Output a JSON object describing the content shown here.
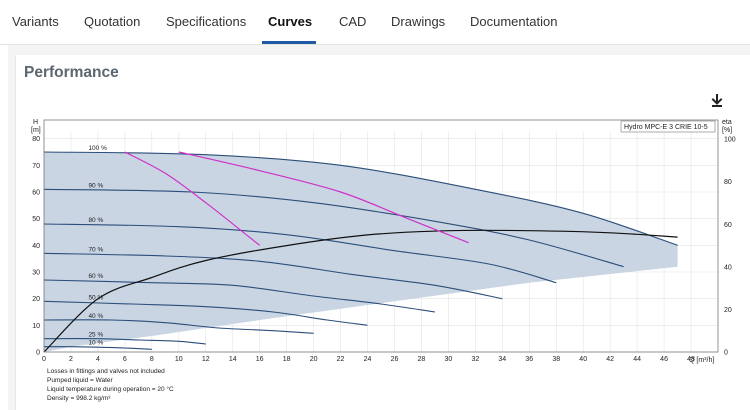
{
  "tabs": [
    {
      "label": "Variants",
      "active": false
    },
    {
      "label": "Quotation",
      "active": false
    },
    {
      "label": "Specifications",
      "active": false
    },
    {
      "label": "Curves",
      "active": true
    },
    {
      "label": "CAD",
      "active": false
    },
    {
      "label": "Drawings",
      "active": false
    },
    {
      "label": "Documentation",
      "active": false
    }
  ],
  "section": {
    "title": "Performance",
    "download_icon": "download-icon"
  },
  "colors": {
    "accent": "#1f5aa6",
    "area": "#c9d5e3",
    "curve_dark": "#2b4e7a",
    "efficiency": "#d030c8"
  },
  "chart_data": {
    "type": "line",
    "title": "Hydro MPC-E 3 CRIE 10-5",
    "y_left_label": "H",
    "y_left_unit": "[m]",
    "y_right_label": "eta",
    "y_right_unit": "[%]",
    "x_label": "Q [m³/h]",
    "x_ticks": [
      "0",
      "2",
      "4",
      "6",
      "8",
      "10",
      "12",
      "14",
      "16",
      "18",
      "20",
      "22",
      "24",
      "26",
      "28",
      "30",
      "32",
      "34",
      "36",
      "38",
      "40",
      "42",
      "44",
      "46",
      "48"
    ],
    "y_left_ticks": [
      "0",
      "10",
      "20",
      "30",
      "40",
      "50",
      "60",
      "70",
      "80"
    ],
    "y_right_ticks": [
      "0",
      "20",
      "40",
      "60",
      "80",
      "100"
    ],
    "xlim": [
      0,
      50
    ],
    "ylim": [
      0,
      87
    ],
    "y_right_lim": [
      0,
      109
    ],
    "speed_labels": [
      "100 %",
      "90 %",
      "80 %",
      "70 %",
      "60 %",
      "50 %",
      "40 %",
      "25 %",
      "10 %"
    ],
    "grid": true,
    "series": [
      {
        "name": "100 %",
        "x": [
          0,
          12,
          22,
          32,
          40,
          47
        ],
        "y": [
          75,
          74,
          70,
          61,
          52,
          40
        ]
      },
      {
        "name": "90 %",
        "x": [
          0,
          11,
          20,
          29,
          36,
          43
        ],
        "y": [
          61,
          60,
          56,
          49,
          42,
          32
        ]
      },
      {
        "name": "80 %",
        "x": [
          0,
          10,
          18,
          26,
          33,
          38
        ],
        "y": [
          48,
          47,
          44,
          38,
          33,
          26
        ]
      },
      {
        "name": "70 %",
        "x": [
          0,
          9,
          16,
          23,
          29,
          34
        ],
        "y": [
          37,
          36,
          34,
          29,
          25,
          20
        ]
      },
      {
        "name": "60 %",
        "x": [
          0,
          8,
          14,
          20,
          25,
          29
        ],
        "y": [
          27,
          26,
          25,
          21,
          18,
          15
        ]
      },
      {
        "name": "50 %",
        "x": [
          0,
          6.5,
          12,
          17,
          21,
          24
        ],
        "y": [
          19,
          18,
          17,
          15,
          12,
          10
        ]
      },
      {
        "name": "40 %",
        "x": [
          0,
          5,
          9,
          13,
          17,
          20
        ],
        "y": [
          12,
          12,
          11,
          9,
          8,
          7
        ]
      },
      {
        "name": "25 %",
        "x": [
          0,
          4,
          7,
          10,
          12
        ],
        "y": [
          5,
          5,
          4.5,
          4,
          3
        ]
      },
      {
        "name": "10 %",
        "x": [
          0,
          2,
          4,
          6,
          8
        ],
        "y": [
          2,
          2,
          1.8,
          1.5,
          1
        ]
      }
    ],
    "efficiency_curves": [
      {
        "x": [
          6,
          9,
          12,
          14.5,
          16
        ],
        "y": [
          75,
          67,
          56,
          46,
          40
        ]
      },
      {
        "x": [
          10,
          16,
          22,
          27,
          31.5
        ],
        "y": [
          75,
          68,
          60,
          50,
          41
        ]
      }
    ],
    "eta_curve": {
      "x": [
        0,
        4,
        8,
        12,
        18,
        24,
        30,
        36,
        42,
        47
      ],
      "y": [
        0,
        25,
        35,
        43,
        50,
        55,
        57,
        57,
        56,
        54
      ]
    },
    "envelope": {
      "upper_x": [
        0,
        12,
        22,
        32,
        40,
        47
      ],
      "upper_y": [
        75,
        74,
        70,
        61,
        52,
        40
      ],
      "lower_x": [
        47,
        36,
        26,
        16,
        8,
        2,
        0
      ],
      "lower_y": [
        32,
        26,
        19,
        12,
        6,
        2,
        0
      ]
    },
    "legend_notes": [
      "Losses in fittings and valves not included",
      "Pumped liquid = Water",
      "Liquid temperature during operation = 20 °C",
      "Density = 998.2 kg/m³"
    ]
  }
}
